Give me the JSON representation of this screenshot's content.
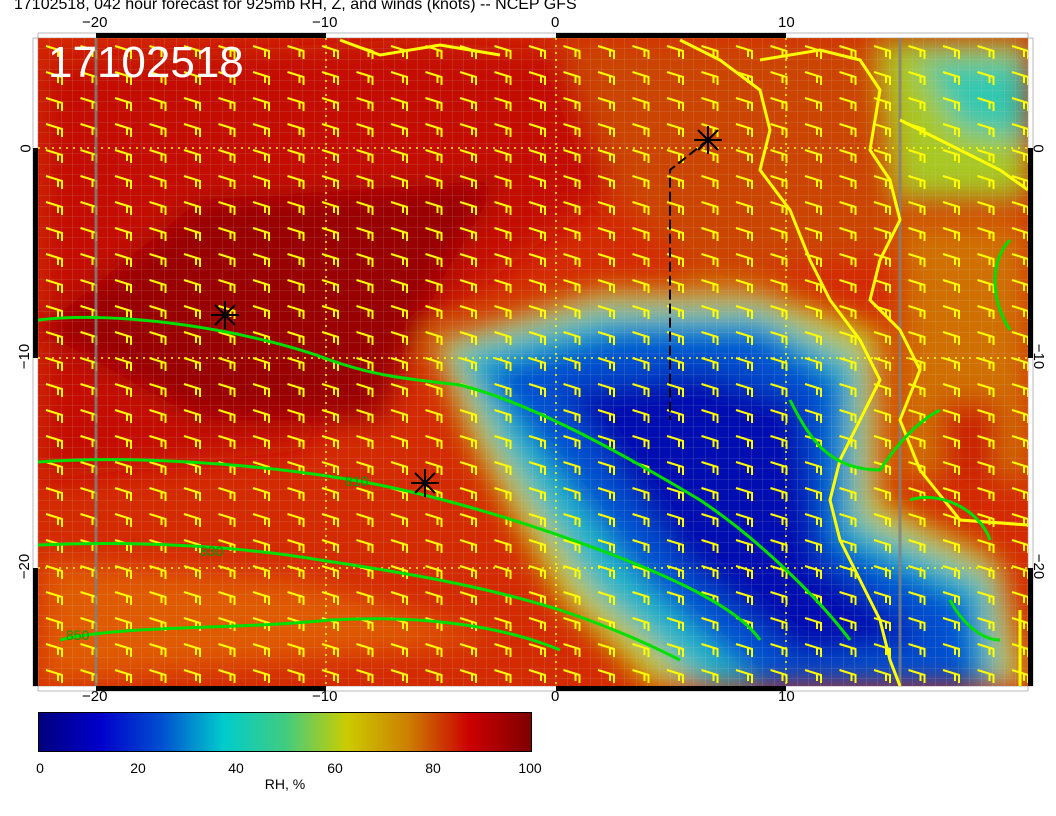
{
  "title": "17102518, 042 hour forecast for 925mb RH, Z, and winds (knots) -- NCEP GFS",
  "stamp": "17102518",
  "lon_ticks": [
    "−20",
    "−10",
    "0",
    "10"
  ],
  "lat_ticks": [
    "0",
    "−10",
    "−20"
  ],
  "contour_labels": [
    "810",
    "830",
    "850"
  ],
  "colorbar": {
    "ticks": [
      "0",
      "20",
      "40",
      "60",
      "80",
      "100"
    ],
    "unit": "RH, %",
    "colors": [
      "#00007f",
      "#0000cc",
      "#0050d0",
      "#00cccc",
      "#40cc80",
      "#cccc00",
      "#cc8000",
      "#cc0000",
      "#7f0000"
    ]
  },
  "colors": {
    "contour": "#00e000",
    "barbs": "#ffff00",
    "coast": "#ffff00",
    "grid": "#c8c8c8"
  }
}
